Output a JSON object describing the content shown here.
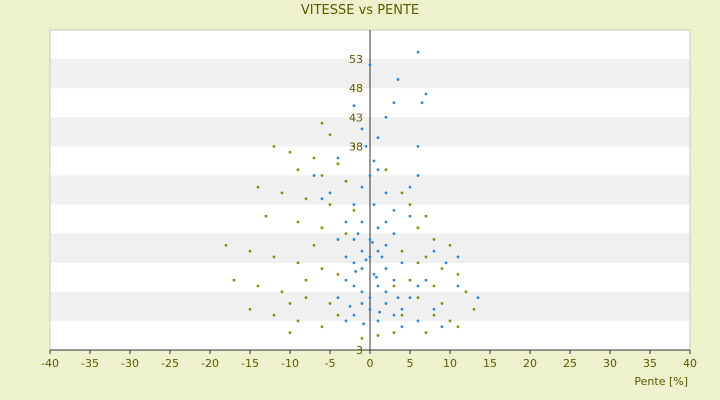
{
  "chart_data": {
    "type": "scatter",
    "title": "VITESSE vs PENTE",
    "xlabel": "Pente [%]",
    "ylabel": "",
    "xlim": [
      -40,
      40
    ],
    "ylim": [
      3,
      58
    ],
    "x_ticks": [
      -40,
      -35,
      -30,
      -25,
      -20,
      -15,
      -10,
      -5,
      0,
      5,
      10,
      15,
      20,
      25,
      30,
      35,
      40
    ],
    "y_ticks": [
      3,
      38,
      43,
      48,
      53
    ],
    "grid": "horizontal alternating bands",
    "legend": "none",
    "colors": {
      "series_blue": "#2f86d6",
      "series_olive": "#8c8c14",
      "axis_text": "#5a5a00",
      "band_light": "#ffffff",
      "band_gray": "#f0f0f0",
      "plot_border": "#c8c8c8",
      "page_background": "#eef2cc"
    },
    "series": [
      {
        "color": "#2f86d6",
        "points": [
          [
            6,
            54.2
          ],
          [
            0,
            52
          ],
          [
            3.5,
            49.5
          ],
          [
            7,
            47
          ],
          [
            -2,
            45
          ],
          [
            3,
            45.5
          ],
          [
            6.5,
            45.5
          ],
          [
            2,
            43
          ],
          [
            -1,
            41
          ],
          [
            1,
            39.5
          ],
          [
            -0.5,
            38
          ],
          [
            6,
            38
          ],
          [
            -4,
            36
          ],
          [
            0.5,
            35.5
          ],
          [
            6,
            33
          ],
          [
            -3,
            32
          ],
          [
            0,
            33
          ],
          [
            2,
            30
          ],
          [
            -6,
            29
          ],
          [
            -2,
            28
          ],
          [
            0.5,
            28
          ],
          [
            3,
            27
          ],
          [
            5,
            26
          ],
          [
            -3,
            25
          ],
          [
            -1,
            25
          ],
          [
            1,
            24
          ],
          [
            3,
            23
          ],
          [
            -4,
            22
          ],
          [
            -2,
            22
          ],
          [
            0,
            22
          ],
          [
            2,
            21
          ],
          [
            -1,
            20
          ],
          [
            1,
            20
          ],
          [
            -3,
            19
          ],
          [
            0,
            19
          ],
          [
            4,
            18
          ],
          [
            -2,
            18
          ],
          [
            2,
            17
          ],
          [
            -1,
            17
          ],
          [
            0.5,
            16
          ],
          [
            -3,
            15
          ],
          [
            3,
            15
          ],
          [
            -2,
            14
          ],
          [
            1,
            14
          ],
          [
            6,
            14
          ],
          [
            -1,
            13
          ],
          [
            2,
            13
          ],
          [
            5,
            12
          ],
          [
            0,
            12
          ],
          [
            -4,
            12
          ],
          [
            2,
            11
          ],
          [
            -1,
            11
          ],
          [
            4,
            10
          ],
          [
            8,
            10
          ],
          [
            0,
            10
          ],
          [
            -2,
            9
          ],
          [
            3,
            9
          ],
          [
            6,
            8
          ],
          [
            1,
            8
          ],
          [
            -3,
            8
          ],
          [
            4,
            7
          ],
          [
            9,
            7
          ],
          [
            13.5,
            12
          ],
          [
            11,
            14
          ],
          [
            7,
            15
          ],
          [
            9.5,
            18
          ],
          [
            8,
            20
          ],
          [
            11,
            19
          ],
          [
            -5,
            30
          ],
          [
            -1,
            31
          ],
          [
            1,
            34
          ],
          [
            -7,
            33
          ],
          [
            5,
            31
          ],
          [
            2,
            25
          ],
          [
            -1.5,
            23
          ],
          [
            0.3,
            21.5
          ],
          [
            1.5,
            19
          ],
          [
            -0.5,
            18.5
          ],
          [
            0.8,
            15.5
          ],
          [
            -1.8,
            16.5
          ],
          [
            3.5,
            12
          ],
          [
            -2.5,
            10.5
          ],
          [
            1.2,
            9.5
          ],
          [
            -0.8,
            7.5
          ]
        ]
      },
      {
        "color": "#8c8c14",
        "points": [
          [
            -6,
            42
          ],
          [
            -5,
            40
          ],
          [
            -12,
            38
          ],
          [
            -10,
            37
          ],
          [
            -7,
            36
          ],
          [
            -4,
            35
          ],
          [
            -9,
            34
          ],
          [
            -6,
            33
          ],
          [
            -3,
            32
          ],
          [
            -14,
            31
          ],
          [
            -11,
            30
          ],
          [
            -8,
            29
          ],
          [
            -5,
            28
          ],
          [
            -2,
            27
          ],
          [
            -13,
            26
          ],
          [
            -9,
            25
          ],
          [
            -6,
            24
          ],
          [
            -3,
            23
          ],
          [
            -18,
            21
          ],
          [
            -15,
            20
          ],
          [
            -12,
            19
          ],
          [
            -9,
            18
          ],
          [
            -6,
            17
          ],
          [
            -4,
            16
          ],
          [
            -17,
            15
          ],
          [
            -14,
            14
          ],
          [
            -11,
            13
          ],
          [
            -8,
            12
          ],
          [
            -5,
            11
          ],
          [
            -15,
            10
          ],
          [
            -12,
            9
          ],
          [
            -9,
            8
          ],
          [
            -6,
            7
          ],
          [
            -10,
            6
          ],
          [
            -4,
            9
          ],
          [
            4,
            30
          ],
          [
            5,
            28
          ],
          [
            7,
            26
          ],
          [
            6,
            24
          ],
          [
            8,
            22
          ],
          [
            10,
            21
          ],
          [
            4,
            20
          ],
          [
            7,
            19
          ],
          [
            9,
            17
          ],
          [
            11,
            16
          ],
          [
            5,
            15
          ],
          [
            8,
            14
          ],
          [
            12,
            13
          ],
          [
            6,
            12
          ],
          [
            9,
            11
          ],
          [
            13,
            10
          ],
          [
            4,
            9
          ],
          [
            10,
            8
          ],
          [
            11,
            7
          ],
          [
            7,
            6
          ],
          [
            3,
            6
          ],
          [
            -1,
            5
          ],
          [
            1,
            5.5
          ],
          [
            -2,
            38
          ],
          [
            2,
            34
          ],
          [
            -7,
            21
          ],
          [
            -8,
            15
          ],
          [
            -10,
            11
          ],
          [
            6,
            18
          ],
          [
            8,
            9
          ],
          [
            3,
            14
          ]
        ]
      }
    ]
  }
}
